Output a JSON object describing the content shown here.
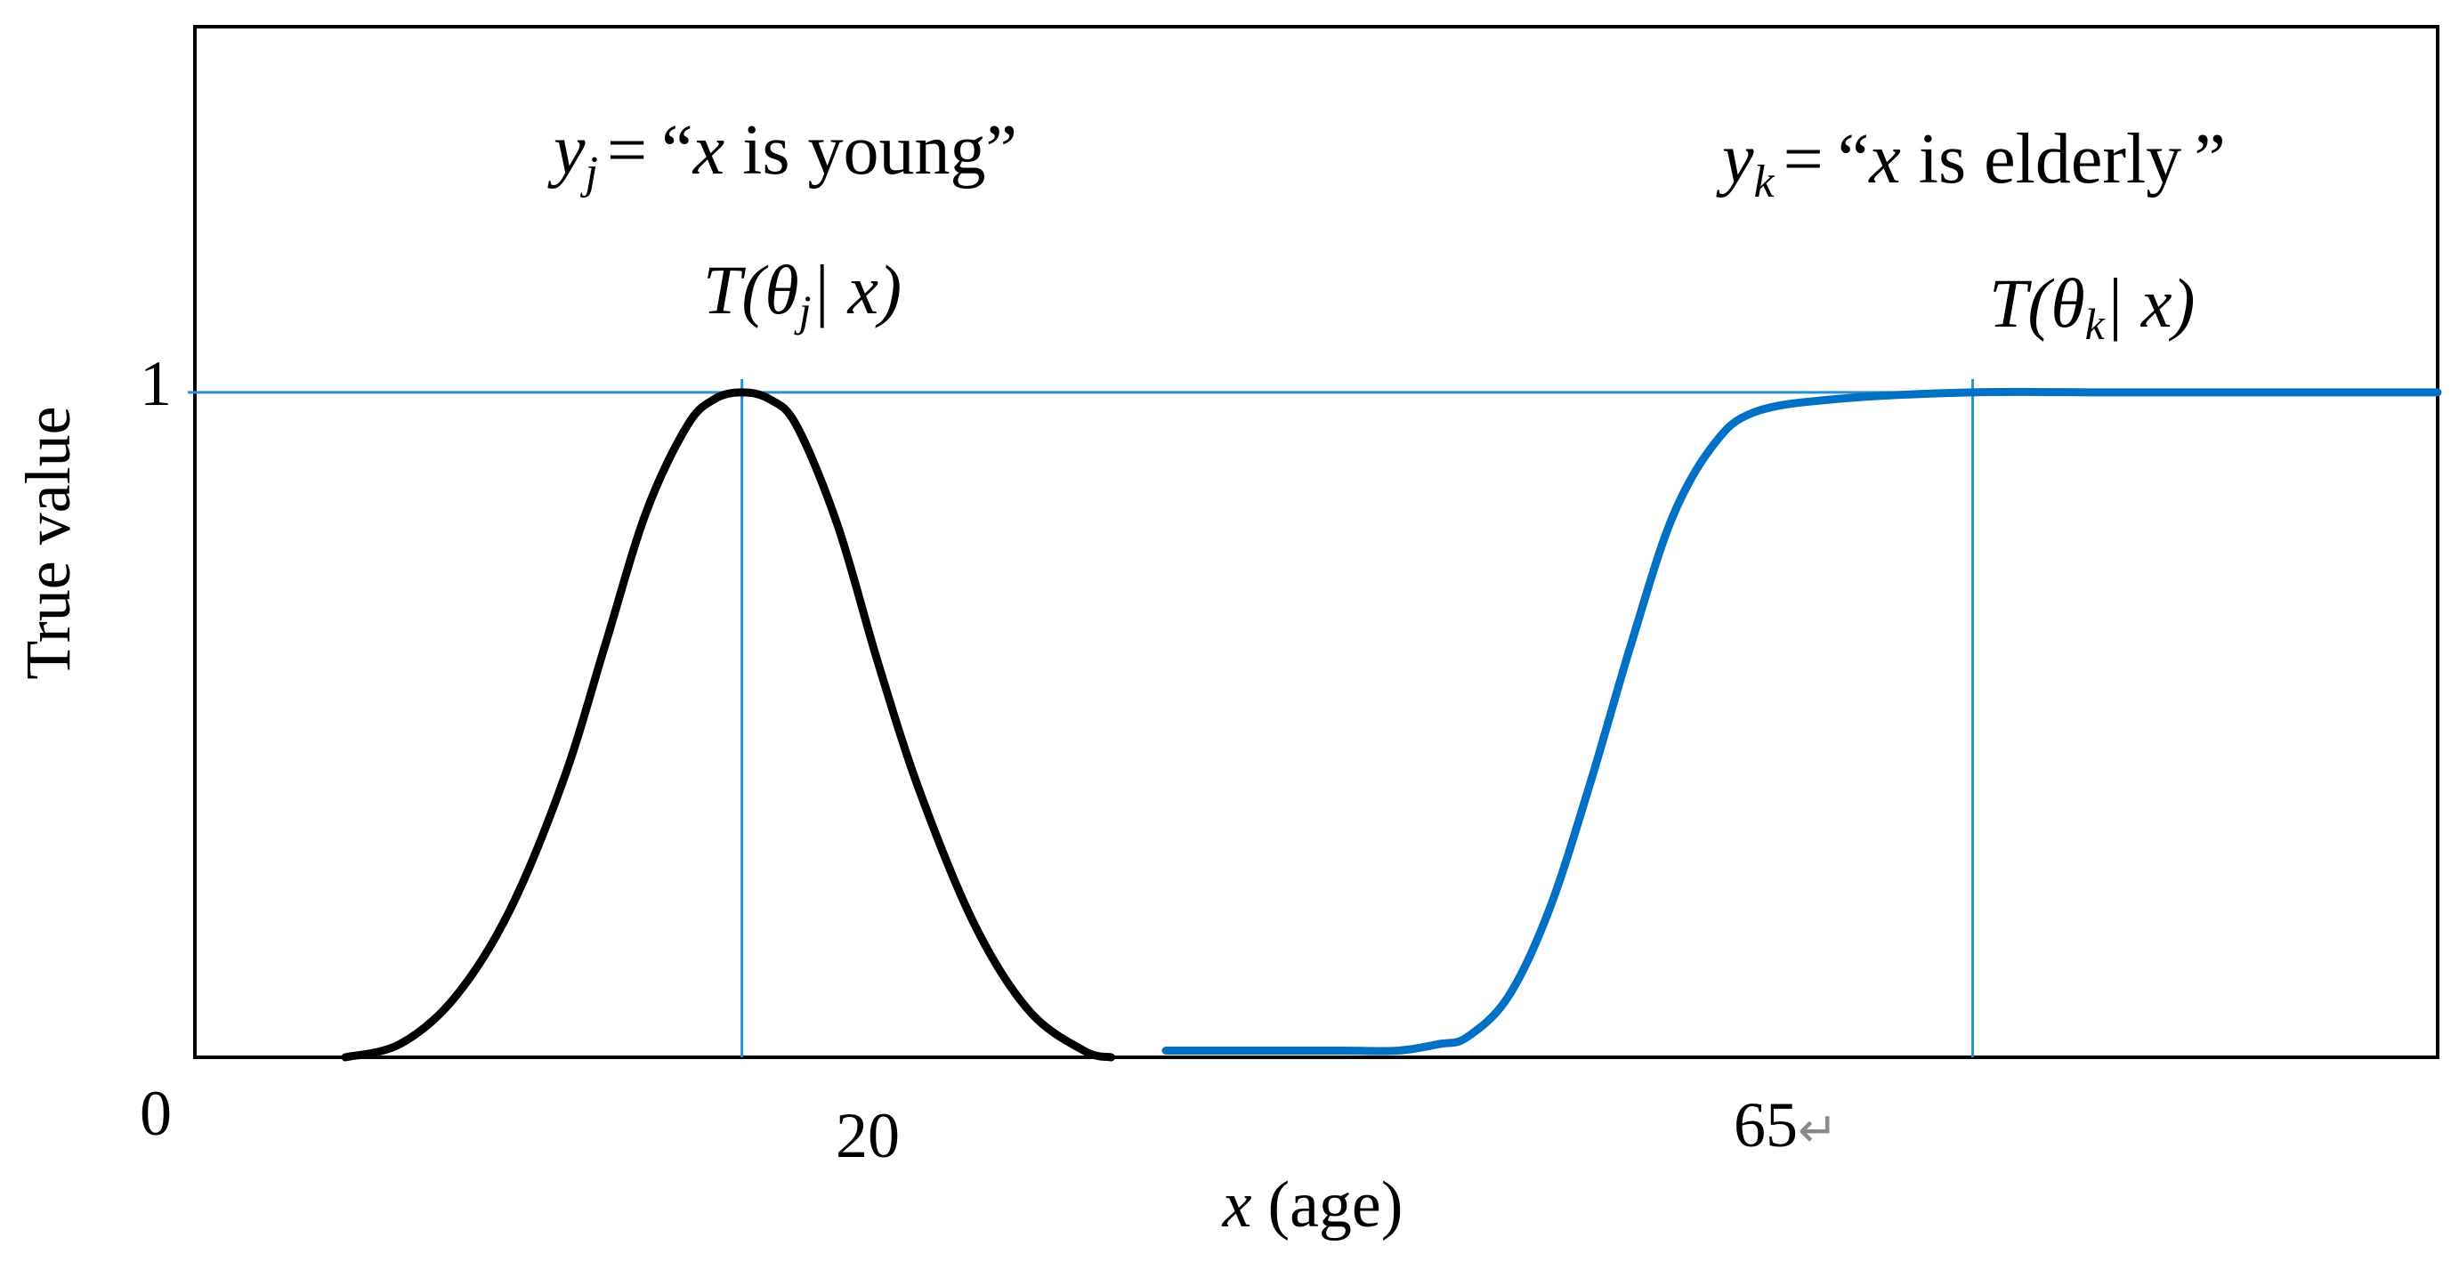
{
  "chart_data": {
    "type": "line",
    "ylabel": "True value",
    "xlabel": {
      "var": "x",
      "unit": "(age)"
    },
    "y_ticks": [
      {
        "value": 0,
        "label": "0"
      },
      {
        "value": 1,
        "label": "1"
      }
    ],
    "x_ticks": [
      {
        "value": 20,
        "label": "20"
      },
      {
        "value": 65,
        "label": "65",
        "trailing_mark": "↵"
      }
    ],
    "xlim": [
      0,
      82
    ],
    "ylim": [
      0,
      1.55
    ],
    "reference_lines": {
      "horizontal": [
        1
      ],
      "vertical": [
        20,
        65
      ],
      "color": "#2a8fd4"
    },
    "series": [
      {
        "label": "T(θj| x)",
        "label_parts": {
          "pre": "T(θ",
          "sub": "j",
          "post": "| x)"
        },
        "statement_parts": {
          "var": "y",
          "sub": "j",
          "eq": "=",
          "open_quote": "“",
          "x": "x",
          "text": " is young",
          "close_quote": "”"
        },
        "color": "#000000",
        "x": [
          5.5,
          7.5,
          9.5,
          11.5,
          13.5,
          15,
          16.5,
          18,
          19,
          20,
          21,
          22,
          23.5,
          25,
          26.5,
          28.5,
          30.5,
          32.5,
          33.5
        ],
        "y": [
          0,
          0.02,
          0.09,
          0.22,
          0.42,
          0.62,
          0.82,
          0.95,
          0.99,
          1.0,
          0.99,
          0.95,
          0.8,
          0.59,
          0.4,
          0.2,
          0.07,
          0.01,
          0
        ]
      },
      {
        "label": "T(θk| x)",
        "label_parts": {
          "pre": "T(θ",
          "sub": "k",
          "post": "| x)"
        },
        "statement_parts": {
          "var": "y",
          "sub": "k",
          "eq": "=",
          "open_quote": "“",
          "x": "x",
          "text": " is elderly",
          "close_quote": "”"
        },
        "color": "#0071c5",
        "x": [
          35.5,
          40,
          42,
          44,
          45.5,
          46.5,
          48,
          49.5,
          51,
          52.5,
          54,
          55.5,
          57,
          60,
          65,
          70,
          75,
          80,
          82
        ],
        "y": [
          0.01,
          0.01,
          0.01,
          0.01,
          0.02,
          0.03,
          0.09,
          0.22,
          0.41,
          0.62,
          0.81,
          0.92,
          0.97,
          0.99,
          1.0,
          1.0,
          1.0,
          1.0,
          1.0
        ]
      }
    ]
  }
}
